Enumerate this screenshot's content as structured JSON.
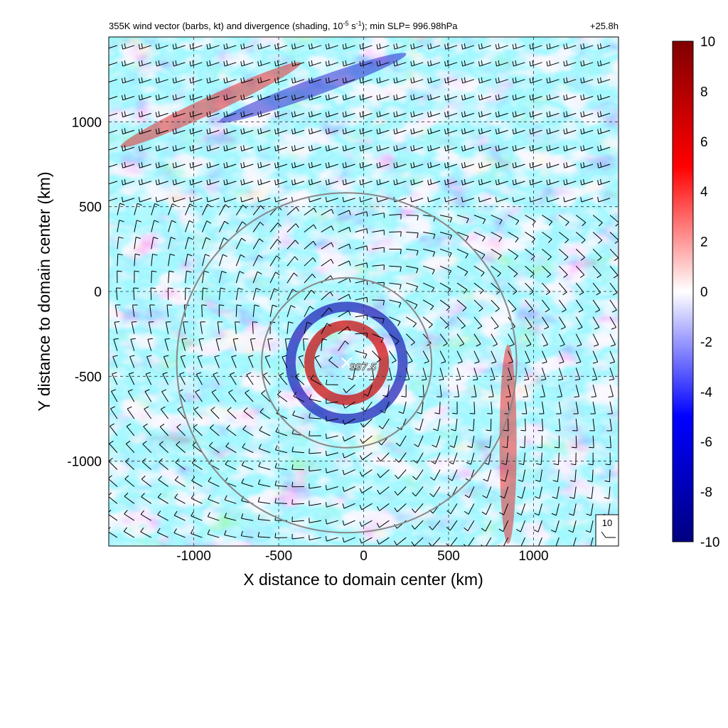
{
  "chart_data": {
    "type": "heatmap",
    "title": "355K wind vector (barbs, kt) and divergence (shading, 10",
    "title_exp": "-5",
    "title_mid": " s",
    "title_exp2": "-1",
    "title_end": "); min SLP= 996.98hPa",
    "lead_time": "+25.8h",
    "xlabel": "X distance to domain center (km)",
    "ylabel": "Y distance to domain center (km)",
    "xlim": [
      -1500,
      1500
    ],
    "ylim": [
      -1500,
      1500
    ],
    "x_ticks": [
      -1000,
      -500,
      0,
      500,
      1000
    ],
    "y_ticks": [
      -1000,
      -500,
      0,
      500,
      1000
    ],
    "x_tick_labels": [
      "-1000",
      "-500",
      "0",
      "500",
      "1000"
    ],
    "y_tick_labels": [
      "-1000",
      "-500",
      "0",
      "500",
      "1000"
    ],
    "grid": "dashed",
    "colorbar": {
      "min": -10,
      "max": 10,
      "ticks": [
        10,
        8,
        6,
        4,
        2,
        0,
        -2,
        -4,
        -6,
        -8,
        -10
      ],
      "tick_labels": [
        "10",
        "8",
        "6",
        "4",
        "2",
        "0",
        "-2",
        "-4",
        "-6",
        "-8",
        "-10"
      ],
      "colormap": [
        "#000080",
        "#0000ff",
        "#ffffff",
        "#ff0000",
        "#800000"
      ]
    },
    "storm_center": {
      "x": -100,
      "y": -420,
      "label": "997.5"
    },
    "range_rings": [
      {
        "cx": -100,
        "cy": -420,
        "radius_km": 500
      },
      {
        "cx": -100,
        "cy": -420,
        "radius_km": 1000
      }
    ],
    "barb_reference": {
      "label": "10",
      "speed_kt": 10
    },
    "features": [
      {
        "type": "positive_band",
        "x": -900,
        "y": 1100,
        "angle_deg": 25
      },
      {
        "type": "negative_band",
        "x": -300,
        "y": 1200,
        "angle_deg": 20
      },
      {
        "type": "positive_ring",
        "x": -100,
        "y": -420,
        "radius_km": 220
      },
      {
        "type": "negative_ring",
        "x": -100,
        "y": -420,
        "radius_km": 330
      },
      {
        "type": "positive_band",
        "x": 850,
        "y": -900,
        "angle_deg": 90
      }
    ]
  }
}
